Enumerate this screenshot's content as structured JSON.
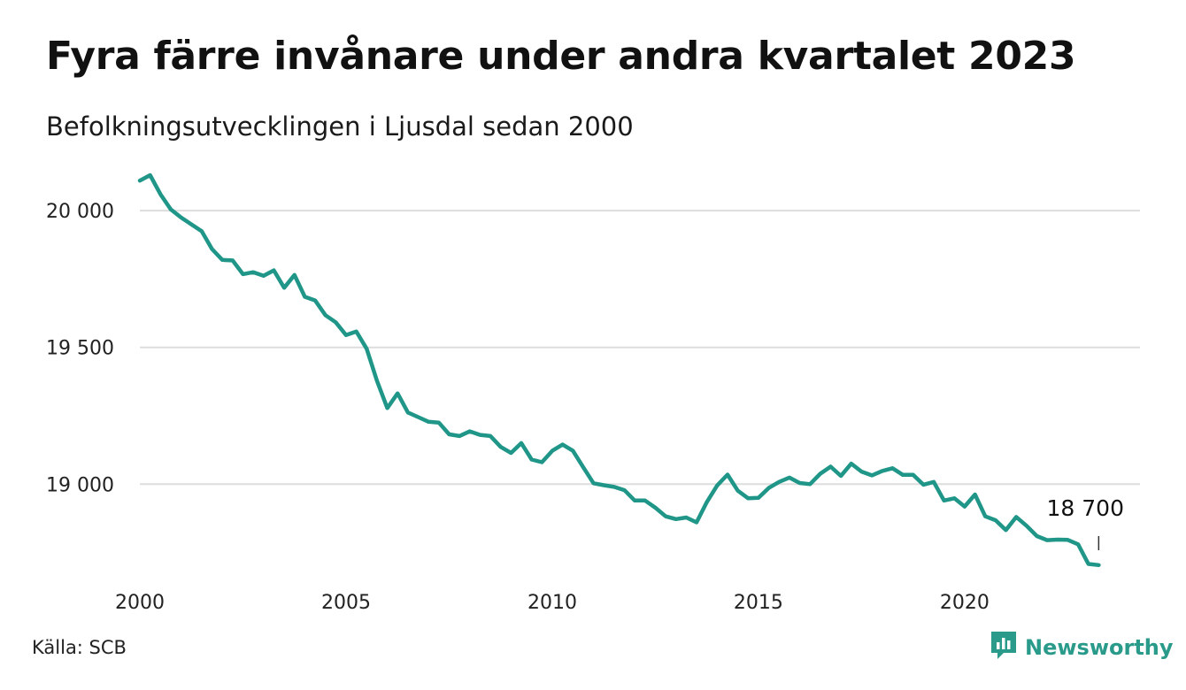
{
  "header": {
    "title": "Fyra färre invånare under andra kvartalet 2023",
    "subtitle": "Befolkningsutvecklingen i Ljusdal sedan 2000"
  },
  "footer": {
    "source": "Källa: SCB",
    "brand": "Newsworthy",
    "brand_icon": "newsworthy-logo-icon"
  },
  "colors": {
    "line": "#1f9688",
    "grid": "#dddddd",
    "brand": "#2a9a8a"
  },
  "chart_data": {
    "type": "line",
    "title": "Fyra färre invånare under andra kvartalet 2023",
    "subtitle": "Befolkningsutvecklingen i Ljusdal sedan 2000",
    "xlabel": "",
    "ylabel": "",
    "grid": "horizontal",
    "xlim": [
      2000,
      2023.5
    ],
    "ylim": [
      18700,
      20130
    ],
    "x_ticks": [
      {
        "value": 2000,
        "label": "2000"
      },
      {
        "value": 2005,
        "label": "2005"
      },
      {
        "value": 2010,
        "label": "2010"
      },
      {
        "value": 2015,
        "label": "2015"
      },
      {
        "value": 2020,
        "label": "2020"
      }
    ],
    "y_ticks": [
      {
        "value": 20000,
        "label": "20 000"
      },
      {
        "value": 19500,
        "label": "19 500"
      },
      {
        "value": 19000,
        "label": "19 000"
      }
    ],
    "end_label": "18 700",
    "series": [
      {
        "x": [
          2000.0,
          2000.25,
          2000.5,
          2000.75,
          2001.0,
          2001.25,
          2001.5,
          2001.75,
          2002.0,
          2002.25,
          2002.5,
          2002.75,
          2003.0,
          2003.25,
          2003.5,
          2003.75,
          2004.0,
          2004.25,
          2004.5,
          2004.75,
          2005.0,
          2005.25,
          2005.5,
          2005.75,
          2006.0,
          2006.25,
          2006.5,
          2006.75,
          2007.0,
          2007.25,
          2007.5,
          2007.75,
          2008.0,
          2008.25,
          2008.5,
          2008.75,
          2009.0,
          2009.25,
          2009.5,
          2009.75,
          2010.0,
          2010.25,
          2010.5,
          2010.75,
          2011.0,
          2011.25,
          2011.5,
          2011.75,
          2012.0,
          2012.25,
          2012.5,
          2012.75,
          2013.0,
          2013.25,
          2013.5,
          2013.75,
          2014.0,
          2014.25,
          2014.5,
          2014.75,
          2015.0,
          2015.25,
          2015.5,
          2015.75,
          2016.0,
          2016.25,
          2016.5,
          2016.75,
          2017.0,
          2017.25,
          2017.5,
          2017.75,
          2018.0,
          2018.25,
          2018.5,
          2018.75,
          2019.0,
          2019.25,
          2019.5,
          2019.75,
          2020.0,
          2020.25,
          2020.5,
          2020.75,
          2021.0,
          2021.25,
          2021.5,
          2021.75,
          2022.0,
          2022.25,
          2022.5,
          2022.75,
          2023.0,
          2023.25
        ],
        "values": [
          20110,
          20130,
          20060,
          20005,
          19975,
          19950,
          19925,
          19860,
          19820,
          19818,
          19768,
          19775,
          19762,
          19782,
          19718,
          19765,
          19685,
          19672,
          19618,
          19592,
          19545,
          19558,
          19495,
          19378,
          19278,
          19332,
          19262,
          19245,
          19228,
          19225,
          19182,
          19176,
          19193,
          19180,
          19176,
          19136,
          19114,
          19150,
          19090,
          19080,
          19122,
          19145,
          19122,
          19062,
          19003,
          18996,
          18990,
          18978,
          18940,
          18940,
          18914,
          18882,
          18872,
          18878,
          18860,
          18935,
          18995,
          19035,
          18976,
          18948,
          18950,
          18986,
          19008,
          19024,
          19004,
          19000,
          19038,
          19064,
          19030,
          19075,
          19046,
          19032,
          19048,
          19058,
          19034,
          19034,
          18998,
          19008,
          18940,
          18948,
          18918,
          18962,
          18882,
          18868,
          18832,
          18880,
          18848,
          18810,
          18795,
          18797,
          18796,
          18780,
          18708,
          18704
        ]
      }
    ]
  }
}
